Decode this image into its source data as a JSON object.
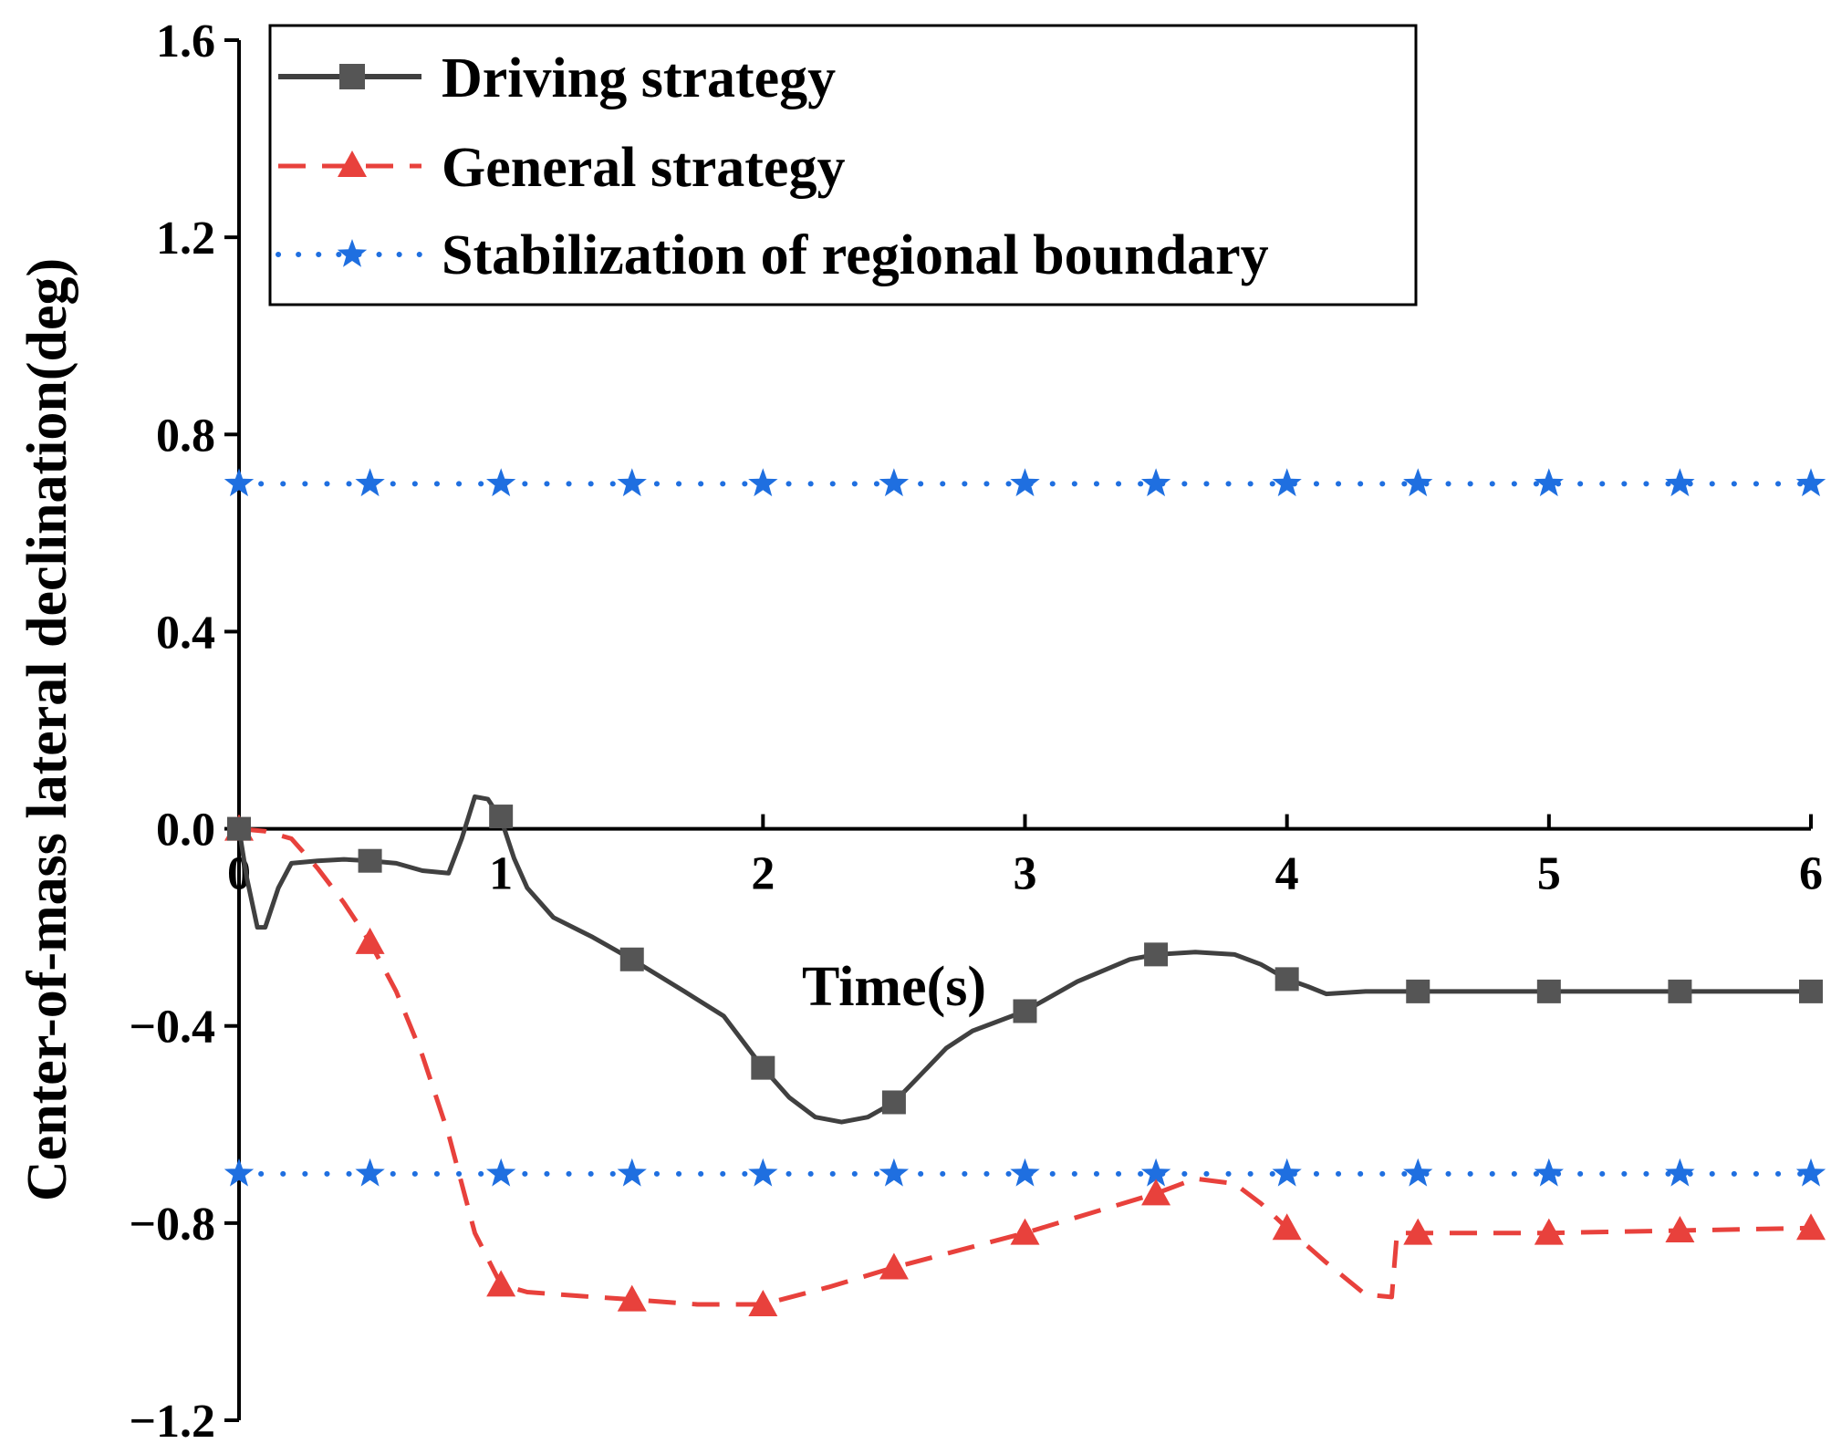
{
  "chart_data": {
    "type": "line",
    "title": "",
    "xlabel": "Time(s)",
    "ylabel": "Center-of-mass lateral declination(deg)",
    "xlim": [
      0,
      6
    ],
    "ylim": [
      -1.2,
      1.6
    ],
    "xticks": [
      {
        "value": 0,
        "label": "0"
      },
      {
        "value": 1,
        "label": "1"
      },
      {
        "value": 2,
        "label": "2"
      },
      {
        "value": 3,
        "label": "3"
      },
      {
        "value": 4,
        "label": "4"
      },
      {
        "value": 5,
        "label": "5"
      },
      {
        "value": 6,
        "label": "6"
      }
    ],
    "yticks": [
      {
        "value": -1.2,
        "label": "−1.2"
      },
      {
        "value": -0.8,
        "label": "−0.8"
      },
      {
        "value": -0.4,
        "label": "−0.4"
      },
      {
        "value": 0.0,
        "label": "0.0"
      },
      {
        "value": 0.4,
        "label": "0.4"
      },
      {
        "value": 0.8,
        "label": "0.8"
      },
      {
        "value": 1.2,
        "label": "1.2"
      },
      {
        "value": 1.6,
        "label": "1.6"
      }
    ],
    "grid": false,
    "legend_position": "top-left",
    "series": [
      {
        "name": "Driving strategy",
        "color": "#404040",
        "line_style": "solid",
        "marker": "square",
        "curve": [
          [
            0,
            0
          ],
          [
            0.03,
            -0.1
          ],
          [
            0.07,
            -0.2
          ],
          [
            0.1,
            -0.2
          ],
          [
            0.15,
            -0.12
          ],
          [
            0.2,
            -0.07
          ],
          [
            0.3,
            -0.065
          ],
          [
            0.4,
            -0.062
          ],
          [
            0.5,
            -0.065
          ],
          [
            0.6,
            -0.07
          ],
          [
            0.7,
            -0.085
          ],
          [
            0.8,
            -0.09
          ],
          [
            0.85,
            -0.02
          ],
          [
            0.9,
            0.065
          ],
          [
            0.95,
            0.06
          ],
          [
            1.0,
            0.02
          ],
          [
            1.05,
            -0.06
          ],
          [
            1.1,
            -0.12
          ],
          [
            1.2,
            -0.18
          ],
          [
            1.35,
            -0.22
          ],
          [
            1.5,
            -0.265
          ],
          [
            1.7,
            -0.33
          ],
          [
            1.85,
            -0.38
          ],
          [
            1.95,
            -0.45
          ],
          [
            2.0,
            -0.485
          ],
          [
            2.1,
            -0.545
          ],
          [
            2.2,
            -0.585
          ],
          [
            2.3,
            -0.595
          ],
          [
            2.4,
            -0.585
          ],
          [
            2.5,
            -0.555
          ],
          [
            2.6,
            -0.5
          ],
          [
            2.7,
            -0.445
          ],
          [
            2.8,
            -0.41
          ],
          [
            3.0,
            -0.37
          ],
          [
            3.2,
            -0.31
          ],
          [
            3.4,
            -0.265
          ],
          [
            3.5,
            -0.255
          ],
          [
            3.65,
            -0.25
          ],
          [
            3.8,
            -0.255
          ],
          [
            3.9,
            -0.275
          ],
          [
            4.0,
            -0.305
          ],
          [
            4.08,
            -0.32
          ],
          [
            4.15,
            -0.335
          ],
          [
            4.3,
            -0.33
          ],
          [
            4.5,
            -0.33
          ],
          [
            5.0,
            -0.33
          ],
          [
            5.5,
            -0.33
          ],
          [
            6.0,
            -0.33
          ]
        ],
        "markers": [
          [
            0,
            0
          ],
          [
            0.5,
            -0.065
          ],
          [
            1.0,
            0.025
          ],
          [
            1.5,
            -0.265
          ],
          [
            2.0,
            -0.485
          ],
          [
            2.5,
            -0.555
          ],
          [
            3.0,
            -0.37
          ],
          [
            3.5,
            -0.255
          ],
          [
            4.0,
            -0.305
          ],
          [
            4.5,
            -0.33
          ],
          [
            5.0,
            -0.33
          ],
          [
            5.5,
            -0.33
          ],
          [
            6.0,
            -0.33
          ]
        ]
      },
      {
        "name": "General strategy",
        "color": "#e8413c",
        "line_style": "dashed",
        "marker": "triangle",
        "curve": [
          [
            0,
            0
          ],
          [
            0.1,
            -0.005
          ],
          [
            0.2,
            -0.02
          ],
          [
            0.3,
            -0.08
          ],
          [
            0.4,
            -0.15
          ],
          [
            0.5,
            -0.23
          ],
          [
            0.6,
            -0.33
          ],
          [
            0.7,
            -0.46
          ],
          [
            0.8,
            -0.62
          ],
          [
            0.9,
            -0.82
          ],
          [
            1.0,
            -0.925
          ],
          [
            1.1,
            -0.94
          ],
          [
            1.3,
            -0.948
          ],
          [
            1.5,
            -0.955
          ],
          [
            1.75,
            -0.965
          ],
          [
            2.0,
            -0.965
          ],
          [
            2.25,
            -0.93
          ],
          [
            2.5,
            -0.89
          ],
          [
            2.75,
            -0.855
          ],
          [
            3.0,
            -0.82
          ],
          [
            3.25,
            -0.78
          ],
          [
            3.5,
            -0.74
          ],
          [
            3.65,
            -0.71
          ],
          [
            3.8,
            -0.72
          ],
          [
            3.9,
            -0.76
          ],
          [
            4.0,
            -0.81
          ],
          [
            4.15,
            -0.88
          ],
          [
            4.3,
            -0.945
          ],
          [
            4.4,
            -0.95
          ],
          [
            4.42,
            -0.82
          ],
          [
            4.5,
            -0.82
          ],
          [
            5.0,
            -0.82
          ],
          [
            5.5,
            -0.815
          ],
          [
            6.0,
            -0.81
          ]
        ],
        "markers": [
          [
            0,
            0
          ],
          [
            0.5,
            -0.23
          ],
          [
            1.0,
            -0.925
          ],
          [
            1.5,
            -0.955
          ],
          [
            2.0,
            -0.965
          ],
          [
            2.5,
            -0.89
          ],
          [
            3.0,
            -0.82
          ],
          [
            3.5,
            -0.74
          ],
          [
            4.0,
            -0.81
          ],
          [
            4.5,
            -0.82
          ],
          [
            5.0,
            -0.82
          ],
          [
            5.5,
            -0.815
          ],
          [
            6.0,
            -0.81
          ]
        ]
      },
      {
        "name": "Stabilization of regional boundary",
        "color": "#1f6fe0",
        "line_style": "dotted",
        "marker": "star",
        "boundaries": [
          0.7,
          -0.7
        ],
        "marker_x": [
          0,
          0.5,
          1.0,
          1.5,
          2.0,
          2.5,
          3.0,
          3.5,
          4.0,
          4.5,
          5.0,
          5.5,
          6.0
        ]
      }
    ]
  }
}
